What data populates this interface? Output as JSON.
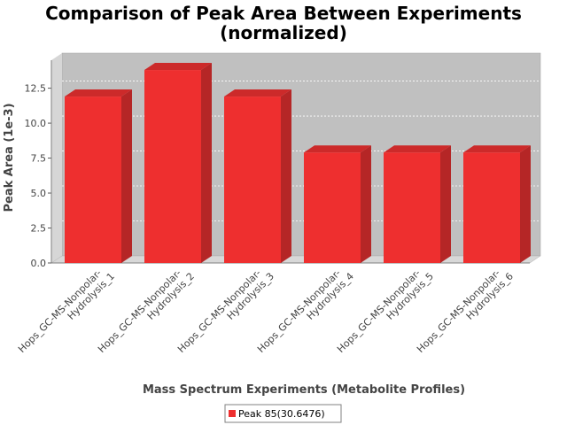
{
  "chart_data": {
    "type": "bar",
    "title": "Comparison of Peak Area Between Experiments",
    "subtitle": "(normalized)",
    "xlabel": "Mass Spectrum Experiments (Metabolite Profiles)",
    "ylabel": "Peak Area (1e-3)",
    "ylim": [
      0,
      14.5
    ],
    "yticks": [
      "0.0",
      "2.5",
      "5.0",
      "7.5",
      "10.0",
      "12.5"
    ],
    "categories": [
      [
        "Hops_GC-MS-Nonpolar-",
        "Hydrolysis_1"
      ],
      [
        "Hops_GC-MS-Nonpolar-",
        "Hydrolysis_2"
      ],
      [
        "Hops_GC-MS-Nonpolar-",
        "Hydrolysis_3"
      ],
      [
        "Hops_GC-MS-Nonpolar-",
        "Hydrolysis_4"
      ],
      [
        "Hops_GC-MS-Nonpolar-",
        "Hydrolysis_5"
      ],
      [
        "Hops_GC-MS-Nonpolar-",
        "Hydrolysis_6"
      ]
    ],
    "series": [
      {
        "name": "Peak 85(30.6476)",
        "values": [
          11.9,
          13.8,
          11.9,
          7.9,
          7.9,
          7.9
        ]
      }
    ],
    "grid": true,
    "legend": "bottom",
    "colors": {
      "bar": "#ee2f2f",
      "bar_side": "#b52626",
      "bar_top": "#cc2a2a",
      "plot_bg": "#c0c0c0"
    }
  }
}
